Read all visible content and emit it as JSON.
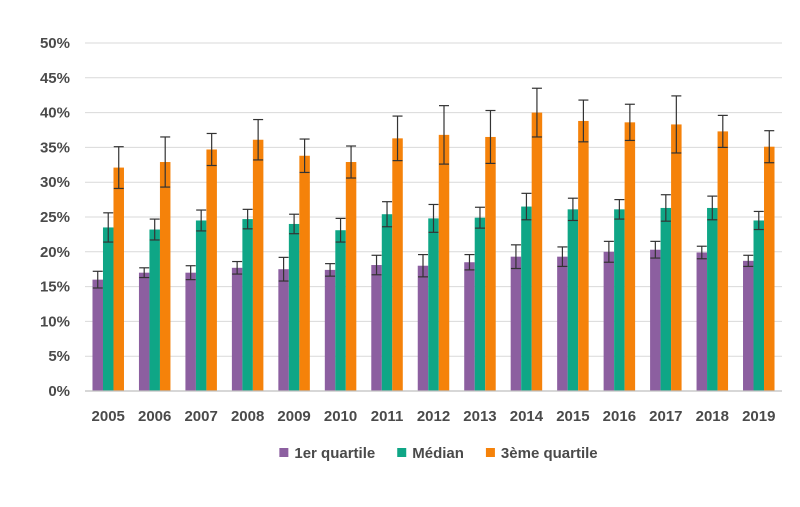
{
  "chart_data": {
    "type": "bar",
    "title": "",
    "xlabel": "",
    "ylabel": "",
    "categories": [
      "2005",
      "2006",
      "2007",
      "2008",
      "2009",
      "2010",
      "2011",
      "2012",
      "2013",
      "2014",
      "2015",
      "2016",
      "2017",
      "2018",
      "2019"
    ],
    "ylim": [
      0,
      50
    ],
    "yticks": [
      "0%",
      "5%",
      "10%",
      "15%",
      "20%",
      "25%",
      "30%",
      "35%",
      "40%",
      "45%",
      "50%"
    ],
    "grid": true,
    "legend_position": "bottom",
    "error_bars": true,
    "series": [
      {
        "name": "1er quartile",
        "color": "#8C5FA0",
        "values": [
          16.0,
          17.0,
          17.0,
          17.7,
          17.5,
          17.4,
          18.1,
          18.0,
          18.5,
          19.3,
          19.3,
          20.0,
          20.3,
          19.9,
          18.7
        ],
        "error": [
          1.2,
          0.7,
          1.0,
          0.9,
          1.7,
          0.9,
          1.4,
          1.6,
          1.1,
          1.7,
          1.4,
          1.5,
          1.2,
          0.9,
          0.8
        ]
      },
      {
        "name": "Médian",
        "color": "#0FA686",
        "values": [
          23.5,
          23.2,
          24.5,
          24.7,
          24.0,
          23.1,
          25.4,
          24.8,
          24.9,
          26.5,
          26.1,
          26.1,
          26.3,
          26.3,
          24.5
        ],
        "error": [
          2.1,
          1.5,
          1.5,
          1.4,
          1.4,
          1.7,
          1.8,
          2.0,
          1.5,
          1.9,
          1.6,
          1.4,
          1.9,
          1.7,
          1.3
        ]
      },
      {
        "name": "3ème quartile",
        "color": "#F5820A",
        "values": [
          32.1,
          32.9,
          34.7,
          36.1,
          33.8,
          32.9,
          36.3,
          36.8,
          36.5,
          40.0,
          38.8,
          38.6,
          38.3,
          37.3,
          35.1
        ],
        "error": [
          3.0,
          3.6,
          2.3,
          2.9,
          2.4,
          2.3,
          3.2,
          4.2,
          3.8,
          3.5,
          3.0,
          2.6,
          4.1,
          2.3,
          2.3
        ]
      }
    ]
  }
}
